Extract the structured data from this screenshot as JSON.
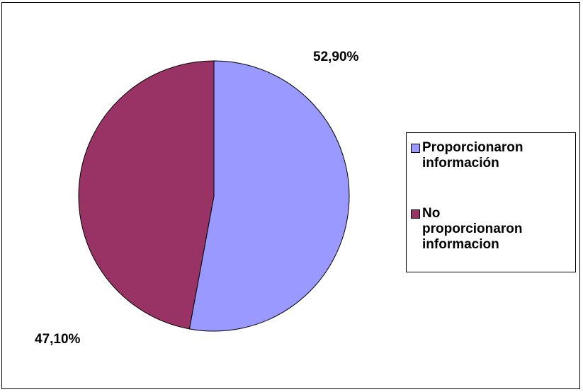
{
  "chart_data": {
    "type": "pie",
    "categories": [
      "Proporcionaron información",
      "No proporcionaron informacion"
    ],
    "values": [
      52.9,
      47.1
    ],
    "data_labels": [
      "52,90%",
      "47,10%"
    ],
    "colors": [
      "#9999ff",
      "#993366"
    ],
    "legend": {
      "placement": "right",
      "items": [
        {
          "lines": [
            "Proporcionaron",
            "información"
          ],
          "color": "#9999ff"
        },
        {
          "lines": [
            "No",
            "proporcionaron",
            "informacion"
          ],
          "color": "#993366"
        }
      ]
    }
  }
}
